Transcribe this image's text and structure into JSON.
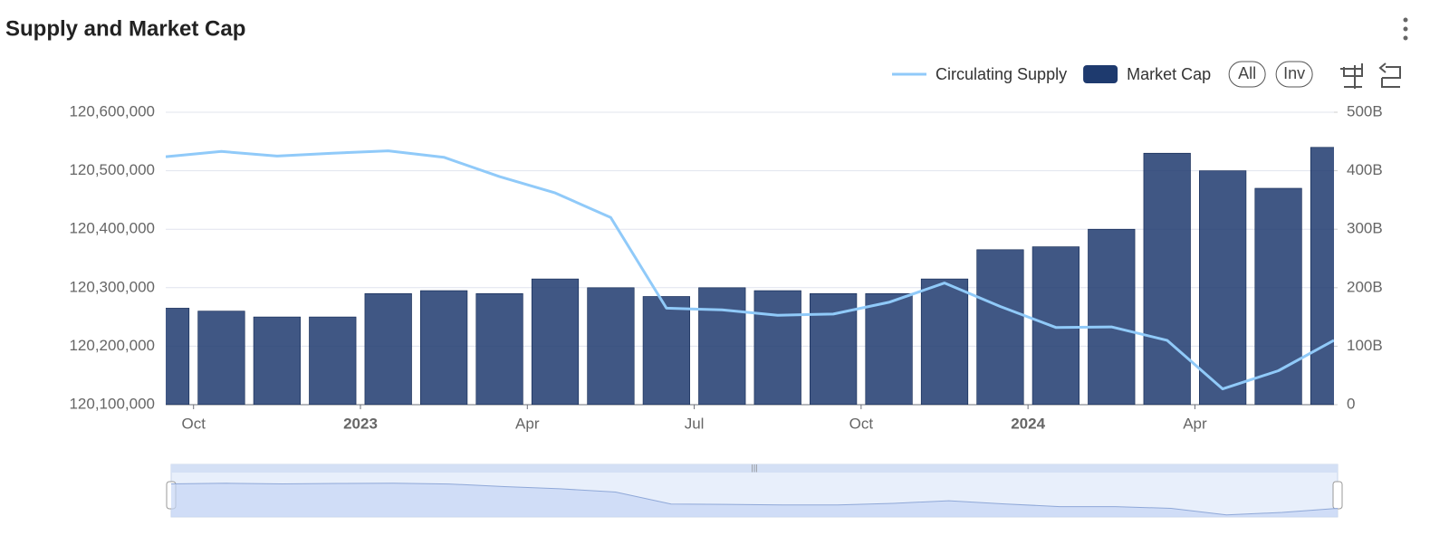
{
  "chart_data": {
    "type": "bar-line",
    "title": "Supply and Market Cap",
    "controls": [
      "All",
      "Inv"
    ],
    "x": [
      "2022-09",
      "2022-10",
      "2022-11",
      "2022-12",
      "2023-01",
      "2023-02",
      "2023-03",
      "2023-04",
      "2023-05",
      "2023-06",
      "2023-07",
      "2023-08",
      "2023-09",
      "2023-10",
      "2023-11",
      "2023-12",
      "2024-01",
      "2024-02",
      "2024-03",
      "2024-04",
      "2024-05",
      "2024-06"
    ],
    "xlim": [
      "2022-09",
      "2024-06"
    ],
    "xticks": [
      {
        "value": "2022-10",
        "label": "Oct"
      },
      {
        "value": "2023-01",
        "label": "2023"
      },
      {
        "value": "2023-04",
        "label": "Apr"
      },
      {
        "value": "2023-07",
        "label": "Jul"
      },
      {
        "value": "2023-10",
        "label": "Oct"
      },
      {
        "value": "2024-01",
        "label": "2024"
      },
      {
        "value": "2024-04",
        "label": "Apr"
      }
    ],
    "ylim": [
      120100000,
      120600000
    ],
    "yticks": [
      {
        "value": 120100000,
        "label": "120,100,000"
      },
      {
        "value": 120200000,
        "label": "120,200,000"
      },
      {
        "value": 120300000,
        "label": "120,300,000"
      },
      {
        "value": 120400000,
        "label": "120,400,000"
      },
      {
        "value": 120500000,
        "label": "120,500,000"
      },
      {
        "value": 120600000,
        "label": "120,600,000"
      }
    ],
    "y2lim": [
      0,
      500
    ],
    "y2ticks": [
      0,
      {
        "value": 100,
        "label": "100B"
      },
      {
        "value": 200,
        "label": "200B"
      },
      {
        "value": 300,
        "label": "300B"
      },
      {
        "value": 400,
        "label": "400B"
      },
      {
        "value": 500,
        "label": "500B"
      }
    ],
    "grid": true,
    "legend": "top-right",
    "series": [
      {
        "name": "Circulating Supply",
        "type": "line",
        "axis": "y",
        "color": "#90caf9",
        "values": [
          120524000,
          120533000,
          120525000,
          120530000,
          120534000,
          120523000,
          120490000,
          120462000,
          120420000,
          120265000,
          120262000,
          120253000,
          120255000,
          120275000,
          120308000,
          120268000,
          120232000,
          120233000,
          120210000,
          120127000,
          120158000,
          120210000
        ]
      },
      {
        "name": "Market Cap",
        "type": "bar",
        "axis": "y2",
        "color": "#1e3a6e",
        "values": [
          165,
          160,
          150,
          150,
          190,
          195,
          190,
          215,
          200,
          185,
          200,
          195,
          190,
          190,
          215,
          265,
          270,
          300,
          430,
          400,
          370,
          440
        ]
      }
    ]
  }
}
